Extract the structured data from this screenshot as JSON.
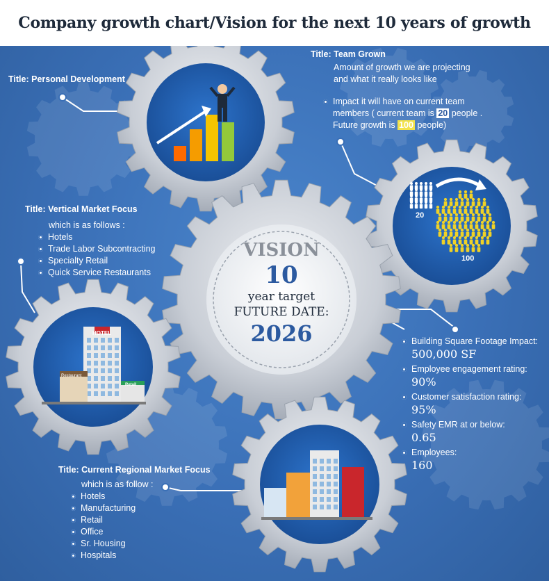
{
  "header": {
    "title": "Company growth chart/Vision for the next 10 years of growth"
  },
  "colors": {
    "accent_yellow": "#f6d23a",
    "gear_gray": "#c9ced6",
    "disc_blue": "#1f5fb0",
    "center_text": "#2c5aa0"
  },
  "personal_development": {
    "title": "Title: Personal Development"
  },
  "team_grown": {
    "title": "Title: Team Grown",
    "line1": "Amount of growth we are projecting",
    "line2": "and what it really looks like",
    "impact_prefix": "Impact it will have on current team",
    "impact_mid": "members ( current team is",
    "current_team": "20",
    "impact_after_current": "people .",
    "future_prefix": "Future growth is",
    "future_team": "100",
    "future_suffix": "people)",
    "icon_label_small": "20",
    "icon_label_large": "100"
  },
  "vertical_market": {
    "title": "Title: Vertical Market Focus",
    "intro": "which is as follows :",
    "items": [
      "Hotels",
      "Trade Labor Subcontracting",
      "Specialty Retail",
      "Quick Service Restaurants"
    ]
  },
  "vision": {
    "heading": "VISION",
    "years": "10",
    "line_target": "year target",
    "line_future": "FUTURE DATE:",
    "year": "2026"
  },
  "stats": [
    {
      "label": "Building Square Footage Impact:",
      "value": "500,000 SF"
    },
    {
      "label": "Employee engagement rating:",
      "value": "90%"
    },
    {
      "label": "Customer satisfaction rating:",
      "value": "95%"
    },
    {
      "label": "Safety EMR at or below:",
      "value": "0.65"
    },
    {
      "label": "Employees:",
      "value": "160"
    }
  ],
  "regional_market": {
    "title": "Title: Current Regional Market Focus",
    "intro": "which is as follow :",
    "items": [
      "Hotels",
      "Manufacturing",
      "Retail",
      "Office",
      "Sr. Housing",
      "Hospitals"
    ]
  },
  "illustrations": {
    "hotel_sign": "HOTEL",
    "restaurant_sign": "Restaurant",
    "retail_sign": "Retail"
  }
}
